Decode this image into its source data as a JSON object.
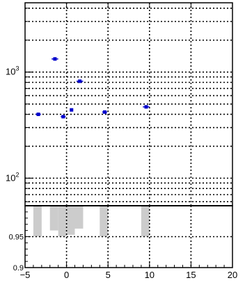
{
  "chart_data": [
    {
      "type": "scatter",
      "panel": "upper",
      "title": "",
      "xlabel": "",
      "ylabel": "",
      "y_scale": "log",
      "xlim": [
        -5,
        20
      ],
      "ylim": [
        55,
        4500
      ],
      "grid": true,
      "grid_style": "dotted",
      "x_ticks": [
        -5,
        0,
        5,
        10,
        15,
        20
      ],
      "y_tick_labels": [
        {
          "value": 1000,
          "base": "10",
          "exp": "3"
        },
        {
          "value": 100,
          "base": "10",
          "exp": "2"
        }
      ],
      "marker_color": "#0000cc",
      "series": [
        {
          "x": [
            -3.4,
            -1.4,
            -0.4,
            0.6,
            1.6,
            4.6,
            9.6
          ],
          "y": [
            400,
            1330,
            380,
            440,
            820,
            420,
            470
          ],
          "x_err": [
            0.3,
            0.4,
            0.3,
            0.2,
            0.4,
            0.3,
            0.4
          ]
        }
      ]
    },
    {
      "type": "bar",
      "panel": "lower",
      "title": "",
      "xlabel": "",
      "ylabel": "",
      "xlim": [
        -5,
        20
      ],
      "ylim": [
        0.9,
        1.0
      ],
      "grid": true,
      "grid_style": "dotted",
      "x_ticks": [
        -5,
        0,
        5,
        10,
        15,
        20
      ],
      "x_tick_labels": [
        "−5",
        "0",
        "5",
        "10",
        "15",
        "20"
      ],
      "y_ticks": [
        0.9,
        0.95
      ],
      "y_tick_labels": [
        "0.9",
        "0.95"
      ],
      "bar_color": "#cccccc",
      "bars": [
        {
          "x0": -4.0,
          "x1": -3.0,
          "low": 0.95,
          "high": 1.0
        },
        {
          "x0": -2.0,
          "x1": -1.0,
          "low": 0.96,
          "high": 1.0
        },
        {
          "x0": -1.0,
          "x1": 0.0,
          "low": 0.95,
          "high": 1.0
        },
        {
          "x0": 0.0,
          "x1": 1.0,
          "low": 0.953,
          "high": 1.0
        },
        {
          "x0": 1.0,
          "x1": 2.0,
          "low": 0.963,
          "high": 1.0
        },
        {
          "x0": 4.0,
          "x1": 5.0,
          "low": 0.95,
          "high": 1.0
        },
        {
          "x0": 9.0,
          "x1": 10.0,
          "low": 0.95,
          "high": 1.0
        }
      ]
    }
  ]
}
